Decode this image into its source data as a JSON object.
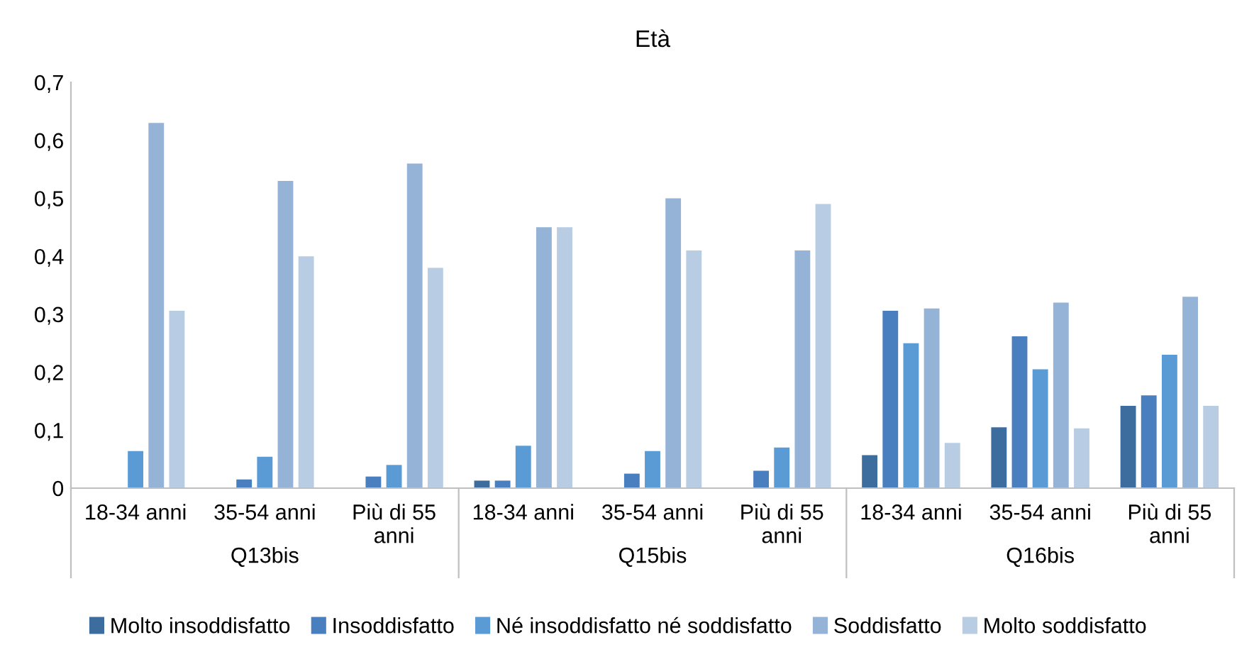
{
  "chart_data": {
    "type": "bar",
    "title": "Età",
    "categories": [
      "18-34 anni",
      "35-54 anni",
      "Più di 55\nanni",
      "18-34 anni",
      "35-54 anni",
      "Più di 55\nanni",
      "18-34 anni",
      "35-54 anni",
      "Più di 55\nanni"
    ],
    "annotations": [
      "Q13bis",
      "Q15bis",
      "Q16bis"
    ],
    "series": [
      {
        "name": "Molto insoddisfatto",
        "color": "#3d6d9e",
        "values": [
          null,
          null,
          null,
          0.013,
          null,
          null,
          0.057,
          0.105,
          0.142
        ]
      },
      {
        "name": "Insoddisfatto",
        "color": "#4a7fbf",
        "values": [
          null,
          0.015,
          0.02,
          0.013,
          0.025,
          0.03,
          0.306,
          0.262,
          0.16
        ]
      },
      {
        "name": "Né insoddisfatto né soddisfatto",
        "color": "#5b9bd5",
        "values": [
          0.064,
          0.054,
          0.04,
          0.073,
          0.064,
          0.07,
          0.25,
          0.205,
          0.23
        ]
      },
      {
        "name": "Soddisfatto",
        "color": "#95b3d7",
        "values": [
          0.63,
          0.53,
          0.56,
          0.45,
          0.5,
          0.41,
          0.31,
          0.32,
          0.33
        ]
      },
      {
        "name": "Molto soddisfatto",
        "color": "#b8cce4",
        "values": [
          0.306,
          0.4,
          0.38,
          0.45,
          0.41,
          0.49,
          0.078,
          0.103,
          0.142
        ]
      }
    ],
    "ylim": [
      0,
      0.7
    ],
    "yticks": [
      {
        "value": 0,
        "label": "0"
      },
      {
        "value": 0.1,
        "label": "0,1"
      },
      {
        "value": 0.2,
        "label": "0,2"
      },
      {
        "value": 0.3,
        "label": "0,3"
      },
      {
        "value": 0.4,
        "label": "0,4"
      },
      {
        "value": 0.5,
        "label": "0,5"
      },
      {
        "value": 0.6,
        "label": "0,6"
      },
      {
        "value": 0.7,
        "label": "0,7"
      }
    ],
    "grid": false,
    "legend": "bottom"
  }
}
